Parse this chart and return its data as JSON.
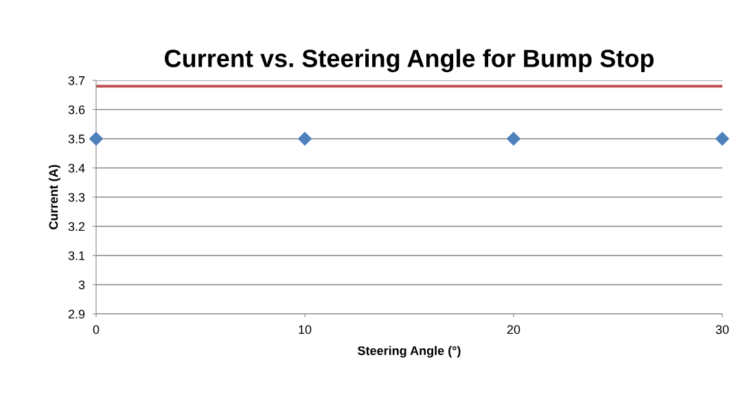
{
  "chart_data": {
    "type": "scatter",
    "title": "Current vs. Steering Angle for Bump Stop",
    "xlabel": "Steering Angle (°)",
    "ylabel": "Current (A)",
    "x": [
      0,
      10,
      20,
      30
    ],
    "series": [
      {
        "color": "#4f81bd",
        "values": [
          3.5,
          3.5,
          3.5,
          3.5
        ]
      }
    ],
    "ref_lines": [
      {
        "axis": "y",
        "value": 3.68,
        "color": "#c0504d",
        "line_style": "solid"
      }
    ],
    "xlim": [
      0,
      30
    ],
    "xticks": [
      0,
      10,
      20,
      30
    ],
    "ylim": [
      2.9,
      3.7
    ],
    "yticks": [
      2.9,
      3,
      3.1,
      3.2,
      3.3,
      3.4,
      3.5,
      3.6,
      3.7
    ],
    "grid": "y",
    "marker": "diamond",
    "legend": false
  }
}
